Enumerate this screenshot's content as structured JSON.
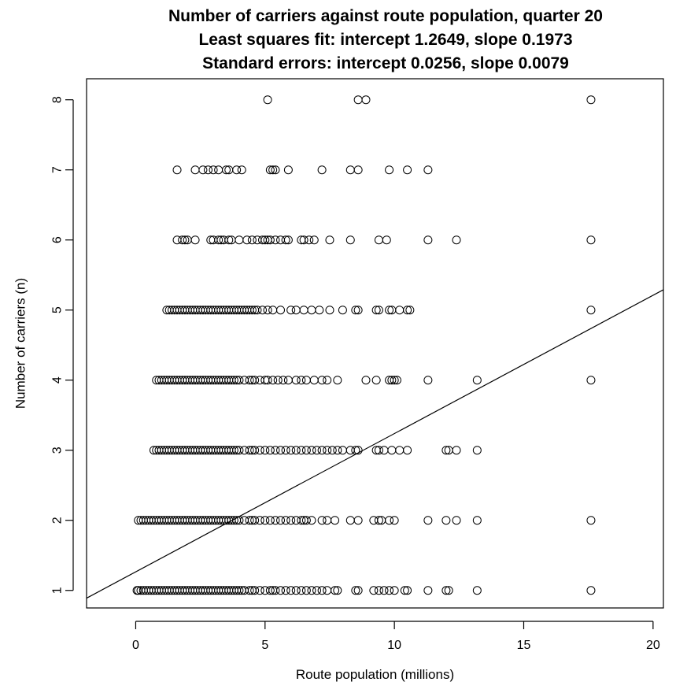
{
  "chart_data": {
    "type": "scatter",
    "title": [
      "Number of carriers against route population, quarter 20",
      "Least squares fit: intercept 1.2649, slope 0.1973",
      "Standard errors: intercept 0.0256, slope 0.0079"
    ],
    "xlabel": "Route population (millions)",
    "ylabel": "Number of carriers (n)",
    "xlim": [
      -1.9,
      20.4
    ],
    "ylim": [
      0.75,
      8.3
    ],
    "xticks": [
      0,
      5,
      10,
      15,
      20
    ],
    "yticks": [
      1,
      2,
      3,
      4,
      5,
      6,
      7,
      8
    ],
    "fit": {
      "intercept": 1.2649,
      "slope": 0.1973
    },
    "rows": [
      {
        "y": 8,
        "x": [
          5.1,
          8.6,
          8.9,
          17.6
        ]
      },
      {
        "y": 7,
        "x": [
          1.6,
          2.3,
          2.6,
          2.8,
          3.0,
          3.2,
          3.5,
          3.6,
          3.9,
          4.1,
          5.2,
          5.3,
          5.4,
          5.9,
          7.2,
          8.3,
          8.6,
          9.8,
          10.5,
          11.3
        ]
      },
      {
        "y": 6,
        "x": [
          1.6,
          1.8,
          1.9,
          2.0,
          2.3,
          2.9,
          3.0,
          3.2,
          3.3,
          3.4,
          3.6,
          3.7,
          4.0,
          4.3,
          4.5,
          4.7,
          4.9,
          5.0,
          5.1,
          5.2,
          5.4,
          5.6,
          5.8,
          5.9,
          6.4,
          6.5,
          6.7,
          6.9,
          7.5,
          8.3,
          9.4,
          9.7,
          11.3,
          12.4,
          17.6
        ]
      },
      {
        "y": 5,
        "x": [
          1.2,
          1.3,
          1.4,
          1.5,
          1.6,
          1.7,
          1.8,
          1.9,
          2.0,
          2.1,
          2.2,
          2.3,
          2.4,
          2.5,
          2.6,
          2.7,
          2.8,
          2.9,
          3.0,
          3.1,
          3.2,
          3.3,
          3.4,
          3.5,
          3.6,
          3.7,
          3.8,
          3.9,
          4.0,
          4.1,
          4.2,
          4.3,
          4.4,
          4.5,
          4.6,
          4.7,
          4.9,
          5.1,
          5.3,
          5.6,
          6.0,
          6.2,
          6.5,
          6.8,
          7.1,
          7.5,
          8.0,
          8.5,
          8.6,
          9.3,
          9.4,
          9.8,
          9.9,
          10.2,
          10.5,
          10.6,
          17.6
        ]
      },
      {
        "y": 4,
        "x": [
          0.8,
          0.9,
          1.0,
          1.1,
          1.2,
          1.3,
          1.4,
          1.5,
          1.6,
          1.7,
          1.8,
          1.9,
          2.0,
          2.1,
          2.2,
          2.3,
          2.4,
          2.5,
          2.6,
          2.7,
          2.8,
          2.9,
          3.0,
          3.1,
          3.2,
          3.3,
          3.4,
          3.5,
          3.6,
          3.7,
          3.8,
          3.9,
          4.0,
          4.2,
          4.4,
          4.5,
          4.6,
          4.8,
          5.0,
          5.1,
          5.3,
          5.5,
          5.7,
          5.9,
          6.2,
          6.4,
          6.6,
          6.9,
          7.2,
          7.4,
          7.8,
          8.9,
          9.3,
          9.8,
          9.9,
          10.0,
          10.1,
          11.3,
          13.2,
          17.6
        ]
      },
      {
        "y": 3,
        "x": [
          0.7,
          0.8,
          0.9,
          1.0,
          1.1,
          1.2,
          1.3,
          1.4,
          1.5,
          1.6,
          1.7,
          1.8,
          1.9,
          2.0,
          2.1,
          2.2,
          2.3,
          2.4,
          2.5,
          2.6,
          2.7,
          2.8,
          2.9,
          3.0,
          3.1,
          3.2,
          3.3,
          3.4,
          3.5,
          3.6,
          3.7,
          3.8,
          3.9,
          4.0,
          4.2,
          4.4,
          4.5,
          4.6,
          4.8,
          5.0,
          5.2,
          5.4,
          5.6,
          5.8,
          6.0,
          6.2,
          6.4,
          6.6,
          6.8,
          7.0,
          7.2,
          7.4,
          7.6,
          7.8,
          8.0,
          8.3,
          8.5,
          8.6,
          9.3,
          9.4,
          9.6,
          9.9,
          10.2,
          10.5,
          12.0,
          12.1,
          12.4,
          13.2
        ]
      },
      {
        "y": 2,
        "x": [
          0.1,
          0.2,
          0.3,
          0.4,
          0.5,
          0.6,
          0.7,
          0.8,
          0.9,
          1.0,
          1.1,
          1.2,
          1.3,
          1.4,
          1.5,
          1.6,
          1.7,
          1.8,
          1.9,
          2.0,
          2.1,
          2.2,
          2.3,
          2.4,
          2.5,
          2.6,
          2.7,
          2.8,
          2.9,
          3.0,
          3.1,
          3.2,
          3.3,
          3.4,
          3.5,
          3.6,
          3.7,
          3.8,
          3.9,
          4.0,
          4.2,
          4.4,
          4.5,
          4.6,
          4.8,
          5.0,
          5.2,
          5.4,
          5.6,
          5.8,
          6.0,
          6.2,
          6.4,
          6.5,
          6.6,
          6.8,
          7.2,
          7.4,
          7.7,
          8.3,
          8.6,
          9.2,
          9.4,
          9.5,
          9.8,
          10.0,
          11.3,
          12.0,
          12.4,
          13.2,
          17.6
        ]
      },
      {
        "y": 1,
        "x": [
          0.05,
          0.1,
          0.2,
          0.3,
          0.4,
          0.5,
          0.6,
          0.7,
          0.8,
          0.9,
          1.0,
          1.1,
          1.2,
          1.3,
          1.4,
          1.5,
          1.6,
          1.7,
          1.8,
          1.9,
          2.0,
          2.1,
          2.2,
          2.3,
          2.4,
          2.5,
          2.6,
          2.7,
          2.8,
          2.9,
          3.0,
          3.1,
          3.2,
          3.3,
          3.4,
          3.5,
          3.6,
          3.7,
          3.8,
          3.9,
          4.0,
          4.1,
          4.2,
          4.4,
          4.5,
          4.6,
          4.8,
          5.0,
          5.2,
          5.3,
          5.4,
          5.6,
          5.8,
          6.0,
          6.2,
          6.4,
          6.6,
          6.8,
          7.0,
          7.2,
          7.4,
          7.7,
          7.8,
          8.5,
          8.6,
          9.2,
          9.4,
          9.6,
          9.8,
          10.0,
          10.4,
          10.5,
          11.3,
          12.0,
          12.1,
          13.2,
          17.6
        ]
      }
    ]
  }
}
